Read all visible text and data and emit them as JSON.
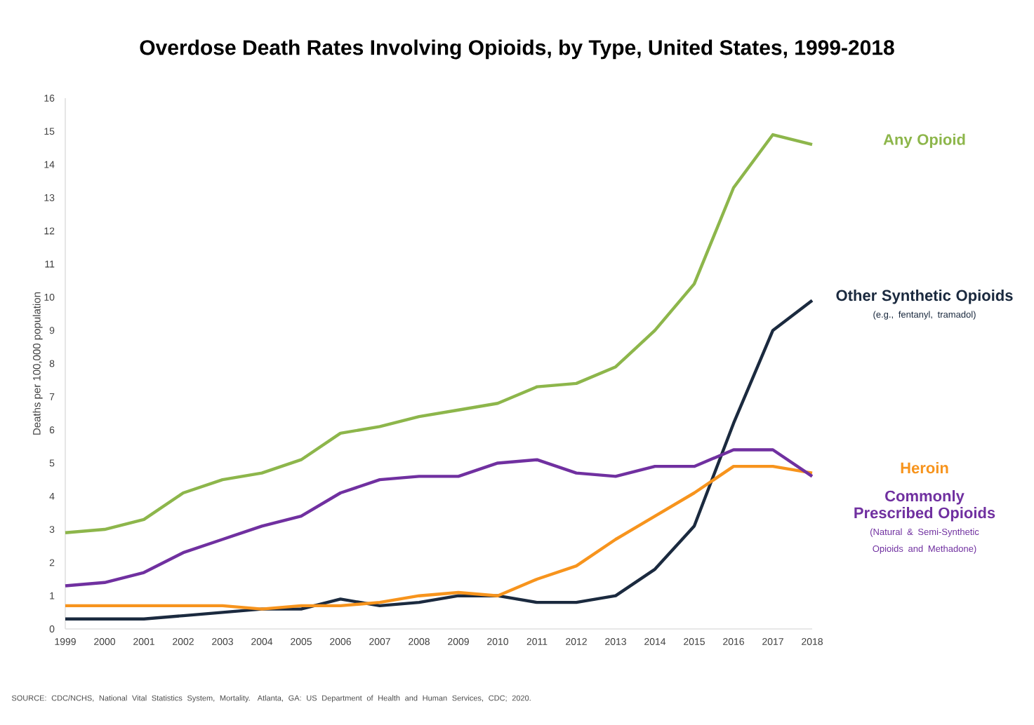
{
  "chart_data": {
    "type": "line",
    "title": "Overdose Death Rates Involving Opioids, by Type, United States, 1999-2018",
    "ylabel": "Deaths per 100,000 population",
    "categories": [
      "1999",
      "2000",
      "2001",
      "2002",
      "2003",
      "2004",
      "2005",
      "2006",
      "2007",
      "2008",
      "2009",
      "2010",
      "2011",
      "2012",
      "2013",
      "2014",
      "2015",
      "2016",
      "2017",
      "2018"
    ],
    "series": [
      {
        "name": "Any Opioid",
        "color": "#8db64b",
        "values": [
          2.9,
          3.0,
          3.3,
          4.1,
          4.5,
          4.7,
          5.1,
          5.9,
          6.1,
          6.4,
          6.6,
          6.8,
          7.3,
          7.4,
          7.9,
          9.0,
          10.4,
          13.3,
          14.9,
          14.6
        ]
      },
      {
        "name": "Other Synthetic Opioids",
        "color": "#1b2a3f",
        "values": [
          0.3,
          0.3,
          0.3,
          0.4,
          0.5,
          0.6,
          0.6,
          0.9,
          0.7,
          0.8,
          1.0,
          1.0,
          0.8,
          0.8,
          1.0,
          1.8,
          3.1,
          6.2,
          9.0,
          9.9
        ]
      },
      {
        "name": "Heroin",
        "color": "#f7941d",
        "values": [
          0.7,
          0.7,
          0.7,
          0.7,
          0.7,
          0.6,
          0.7,
          0.7,
          0.8,
          1.0,
          1.1,
          1.0,
          1.5,
          1.9,
          2.7,
          3.4,
          4.1,
          4.9,
          4.9,
          4.7
        ]
      },
      {
        "name": "Commonly Prescribed Opioids",
        "color": "#7030a0",
        "values": [
          1.3,
          1.4,
          1.7,
          2.3,
          2.7,
          3.1,
          3.4,
          4.1,
          4.5,
          4.6,
          4.6,
          5.0,
          5.1,
          4.7,
          4.6,
          4.9,
          4.9,
          5.4,
          5.4,
          4.6
        ]
      }
    ],
    "annotations": [
      "(e.g., fentanyl, tramadol)",
      "(Natural & Semi-Synthetic Opioids and Methadone)",
      "SOURCE: CDC/NCHS, National Vital Statistics System, Mortality. Atlanta, GA: US Department of Health and Human Services, CDC; 2020."
    ],
    "ylim": [
      0,
      16
    ],
    "yticks": [
      0,
      1,
      2,
      3,
      4,
      5,
      6,
      7,
      8,
      9,
      10,
      11,
      12,
      13,
      14,
      15,
      16
    ],
    "grid": false,
    "legend": false,
    "marker": "none",
    "line_style": "solid"
  }
}
